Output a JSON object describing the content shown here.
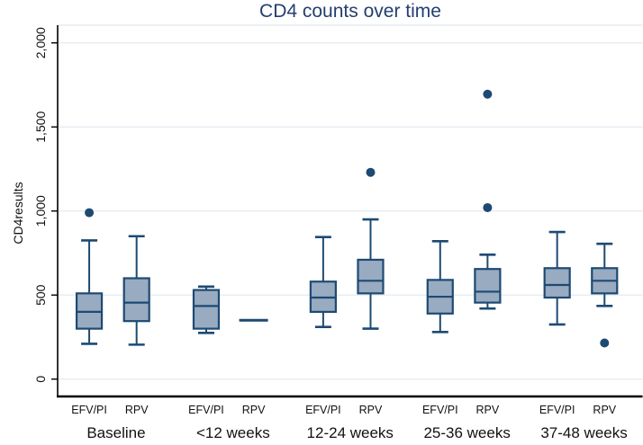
{
  "chart_data": {
    "type": "box",
    "title": "CD4 counts over time",
    "xlabel": "",
    "ylabel": "CD4results",
    "ylim": [
      -100,
      2100
    ],
    "yticks": [
      0,
      500,
      1000,
      1500,
      2000
    ],
    "ytick_labels": [
      "0",
      "500",
      "1,000",
      "1,500",
      "2,000"
    ],
    "grid": true,
    "legend_position": "none",
    "categories": [
      "Baseline",
      "<12 weeks",
      "12-24 weeks",
      "25-36 weeks",
      "37-48 weeks"
    ],
    "series": [
      {
        "name": "EFV/PI",
        "boxes": [
          {
            "whislo": 210,
            "q1": 300,
            "med": 400,
            "q3": 510,
            "whishi": 825,
            "outliers": [
              990
            ]
          },
          {
            "whislo": 275,
            "q1": 300,
            "med": 435,
            "q3": 530,
            "whishi": 550,
            "outliers": []
          },
          {
            "whislo": 310,
            "q1": 400,
            "med": 485,
            "q3": 580,
            "whishi": 845,
            "outliers": []
          },
          {
            "whislo": 280,
            "q1": 390,
            "med": 490,
            "q3": 590,
            "whishi": 820,
            "outliers": []
          },
          {
            "whislo": 325,
            "q1": 485,
            "med": 560,
            "q3": 660,
            "whishi": 875,
            "outliers": []
          }
        ]
      },
      {
        "name": "RPV",
        "boxes": [
          {
            "whislo": 205,
            "q1": 345,
            "med": 455,
            "q3": 600,
            "whishi": 850,
            "outliers": []
          },
          {
            "single": true,
            "med": 350,
            "outliers": []
          },
          {
            "whislo": 300,
            "q1": 510,
            "med": 585,
            "q3": 710,
            "whishi": 950,
            "outliers": [
              1230
            ]
          },
          {
            "whislo": 420,
            "q1": 455,
            "med": 520,
            "q3": 655,
            "whishi": 740,
            "outliers": [
              1695,
              1020
            ]
          },
          {
            "whislo": 435,
            "q1": 510,
            "med": 585,
            "q3": 660,
            "whishi": 805,
            "outliers": [
              215
            ]
          }
        ]
      }
    ],
    "colors": {
      "title": "#243e70",
      "box_fill": "#98abc0",
      "box_stroke": "#1d4a73",
      "outlier": "#1d4a73",
      "grid": "#e6ecf2",
      "axis": "#000000",
      "text": "#111111"
    }
  }
}
